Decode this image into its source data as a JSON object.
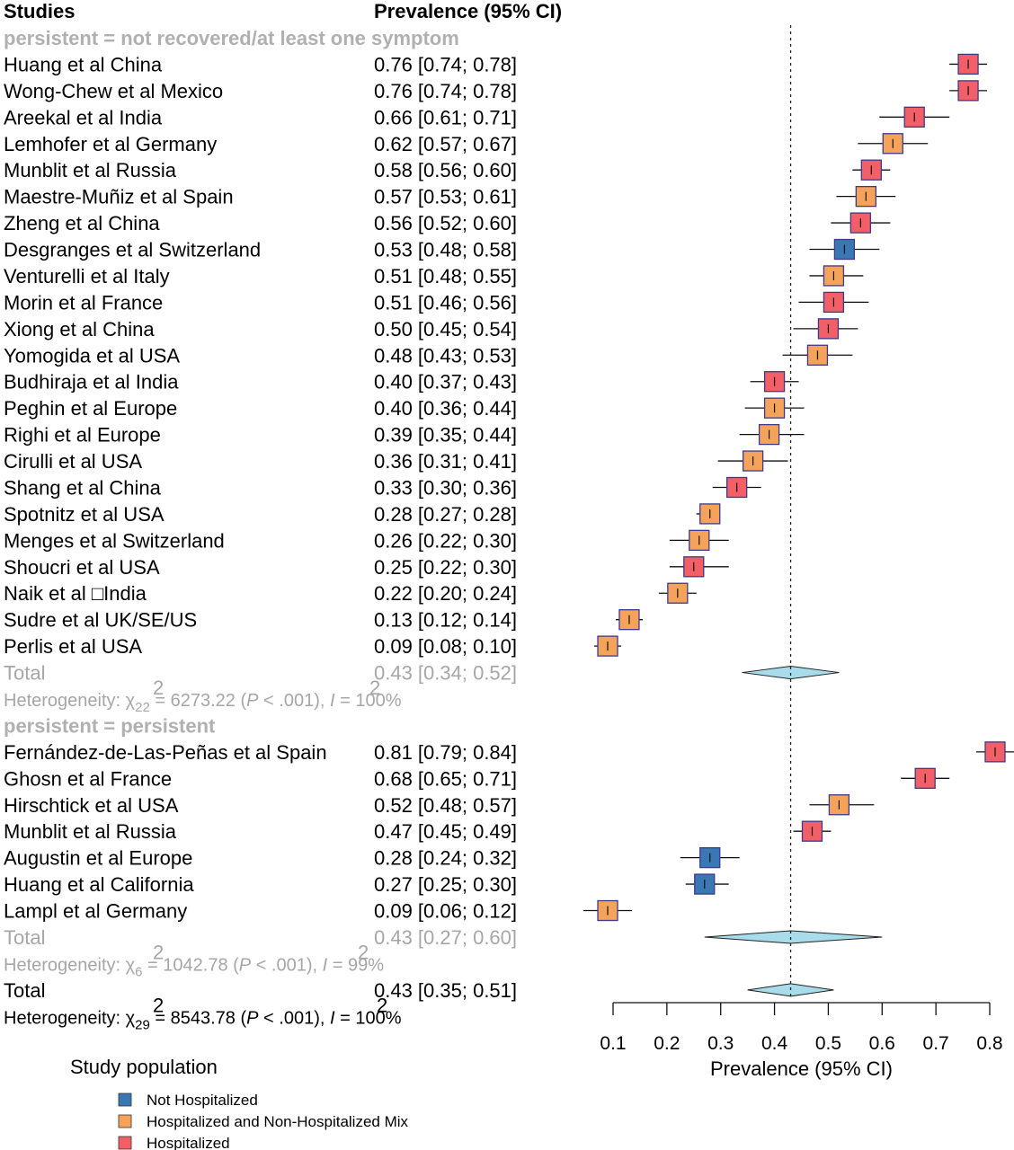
{
  "chart_data": {
    "type": "forest",
    "headers": {
      "studies": "Studies",
      "prevalence": "Prevalence (95% CI)"
    },
    "x_axis": {
      "label": "Prevalence (95% CI)",
      "range": [
        0.1,
        0.8
      ],
      "ticks": [
        "0.1",
        "0.2",
        "0.3",
        "0.4",
        "0.5",
        "0.6",
        "0.7",
        "0.8"
      ]
    },
    "reference_line": 0.43,
    "colors": {
      "Not Hospitalized": "#3a78b4",
      "Hospitalized and Non-Hospitalized Mix": "#f5a35a",
      "Hospitalized": "#f25f66",
      "box_border": "#3b3a8f",
      "diamond": "#a8dcea"
    },
    "groups": [
      {
        "title": "persistent = not recovered/at least one symptom",
        "studies": [
          {
            "name": "Huang et al China",
            "ci_text": "0.76 [0.74; 0.78]",
            "est": 0.76,
            "lo": 0.74,
            "hi": 0.78,
            "pop": "Hospitalized"
          },
          {
            "name": "Wong-Chew et al Mexico",
            "ci_text": "0.76 [0.74; 0.78]",
            "est": 0.76,
            "lo": 0.74,
            "hi": 0.78,
            "pop": "Hospitalized"
          },
          {
            "name": "Areekal et al India",
            "ci_text": "0.66 [0.61; 0.71]",
            "est": 0.66,
            "lo": 0.61,
            "hi": 0.71,
            "pop": "Hospitalized"
          },
          {
            "name": "Lemhofer et al Germany",
            "ci_text": "0.62 [0.57; 0.67]",
            "est": 0.62,
            "lo": 0.57,
            "hi": 0.67,
            "pop": "Hospitalized and Non-Hospitalized Mix"
          },
          {
            "name": "Munblit et al Russia",
            "ci_text": "0.58 [0.56; 0.60]",
            "est": 0.58,
            "lo": 0.56,
            "hi": 0.6,
            "pop": "Hospitalized"
          },
          {
            "name": "Maestre-Muñiz et al Spain",
            "ci_text": "0.57 [0.53; 0.61]",
            "est": 0.57,
            "lo": 0.53,
            "hi": 0.61,
            "pop": "Hospitalized and Non-Hospitalized Mix"
          },
          {
            "name": "Zheng et al China",
            "ci_text": "0.56 [0.52; 0.60]",
            "est": 0.56,
            "lo": 0.52,
            "hi": 0.6,
            "pop": "Hospitalized"
          },
          {
            "name": "Desgranges et al Switzerland",
            "ci_text": "0.53 [0.48; 0.58]",
            "est": 0.53,
            "lo": 0.48,
            "hi": 0.58,
            "pop": "Not Hospitalized"
          },
          {
            "name": "Venturelli et al Italy",
            "ci_text": "0.51 [0.48; 0.55]",
            "est": 0.51,
            "lo": 0.48,
            "hi": 0.55,
            "pop": "Hospitalized and Non-Hospitalized Mix"
          },
          {
            "name": "Morin et al France",
            "ci_text": "0.51 [0.46; 0.56]",
            "est": 0.51,
            "lo": 0.46,
            "hi": 0.56,
            "pop": "Hospitalized"
          },
          {
            "name": "Xiong et al China",
            "ci_text": "0.50 [0.45; 0.54]",
            "est": 0.5,
            "lo": 0.45,
            "hi": 0.54,
            "pop": "Hospitalized"
          },
          {
            "name": "Yomogida et al USA",
            "ci_text": "0.48 [0.43; 0.53]",
            "est": 0.48,
            "lo": 0.43,
            "hi": 0.53,
            "pop": "Hospitalized and Non-Hospitalized Mix"
          },
          {
            "name": "Budhiraja et al India",
            "ci_text": "0.40 [0.37; 0.43]",
            "est": 0.4,
            "lo": 0.37,
            "hi": 0.43,
            "pop": "Hospitalized"
          },
          {
            "name": "Peghin et al Europe",
            "ci_text": "0.40 [0.36; 0.44]",
            "est": 0.4,
            "lo": 0.36,
            "hi": 0.44,
            "pop": "Hospitalized and Non-Hospitalized Mix"
          },
          {
            "name": "Righi et al Europe",
            "ci_text": "0.39 [0.35; 0.44]",
            "est": 0.39,
            "lo": 0.35,
            "hi": 0.44,
            "pop": "Hospitalized and Non-Hospitalized Mix"
          },
          {
            "name": "Cirulli et al USA",
            "ci_text": "0.36 [0.31; 0.41]",
            "est": 0.36,
            "lo": 0.31,
            "hi": 0.41,
            "pop": "Hospitalized and Non-Hospitalized Mix"
          },
          {
            "name": "Shang et al China",
            "ci_text": "0.33 [0.30; 0.36]",
            "est": 0.33,
            "lo": 0.3,
            "hi": 0.36,
            "pop": "Hospitalized"
          },
          {
            "name": "Spotnitz et al USA",
            "ci_text": "0.28 [0.27; 0.28]",
            "est": 0.28,
            "lo": 0.27,
            "hi": 0.28,
            "pop": "Hospitalized and Non-Hospitalized Mix"
          },
          {
            "name": "Menges et al Switzerland",
            "ci_text": "0.26 [0.22; 0.30]",
            "est": 0.26,
            "lo": 0.22,
            "hi": 0.3,
            "pop": "Hospitalized and Non-Hospitalized Mix"
          },
          {
            "name": "Shoucri et al USA",
            "ci_text": "0.25 [0.22; 0.30]",
            "est": 0.25,
            "lo": 0.22,
            "hi": 0.3,
            "pop": "Hospitalized"
          },
          {
            "name": "Naik et al □India",
            "ci_text": "0.22 [0.20; 0.24]",
            "est": 0.22,
            "lo": 0.2,
            "hi": 0.24,
            "pop": "Hospitalized and Non-Hospitalized Mix"
          },
          {
            "name": "Sudre et al UK/SE/US",
            "ci_text": "0.13 [0.12; 0.14]",
            "est": 0.13,
            "lo": 0.12,
            "hi": 0.14,
            "pop": "Hospitalized and Non-Hospitalized Mix"
          },
          {
            "name": "Perlis et al USA",
            "ci_text": "0.09 [0.08; 0.10]",
            "est": 0.09,
            "lo": 0.08,
            "hi": 0.1,
            "pop": "Hospitalized and Non-Hospitalized Mix"
          }
        ],
        "total": {
          "name": "Total",
          "ci_text": "0.43 [0.34; 0.52]",
          "est": 0.43,
          "lo": 0.34,
          "hi": 0.52
        },
        "heterogeneity": {
          "prefix": "Heterogeneity: χ",
          "df": "22",
          "mid": " = 6273.22 (",
          "p": "P",
          "pval": " < .001), ",
          "i": "I",
          "i2": " = 100%"
        }
      },
      {
        "title": "persistent = persistent",
        "studies": [
          {
            "name": "Fernández-de-Las-Peñas et al Spain",
            "ci_text": "0.81 [0.79; 0.84]",
            "est": 0.81,
            "lo": 0.79,
            "hi": 0.84,
            "pop": "Hospitalized"
          },
          {
            "name": "Ghosn et al France",
            "ci_text": "0.68 [0.65; 0.71]",
            "est": 0.68,
            "lo": 0.65,
            "hi": 0.71,
            "pop": "Hospitalized"
          },
          {
            "name": "Hirschtick et al USA",
            "ci_text": "0.52 [0.48; 0.57]",
            "est": 0.52,
            "lo": 0.48,
            "hi": 0.57,
            "pop": "Hospitalized and Non-Hospitalized Mix"
          },
          {
            "name": "Munblit et al Russia",
            "ci_text": "0.47 [0.45; 0.49]",
            "est": 0.47,
            "lo": 0.45,
            "hi": 0.49,
            "pop": "Hospitalized"
          },
          {
            "name": "Augustin et al Europe",
            "ci_text": "0.28 [0.24; 0.32]",
            "est": 0.28,
            "lo": 0.24,
            "hi": 0.32,
            "pop": "Not Hospitalized"
          },
          {
            "name": "Huang et al California",
            "ci_text": "0.27 [0.25; 0.30]",
            "est": 0.27,
            "lo": 0.25,
            "hi": 0.3,
            "pop": "Not Hospitalized"
          },
          {
            "name": "Lampl et al Germany",
            "ci_text": "0.09 [0.06; 0.12]",
            "est": 0.09,
            "lo": 0.06,
            "hi": 0.12,
            "pop": "Hospitalized and Non-Hospitalized Mix"
          }
        ],
        "total": {
          "name": "Total",
          "ci_text": "0.43 [0.27; 0.60]",
          "est": 0.43,
          "lo": 0.27,
          "hi": 0.6
        },
        "heterogeneity": {
          "prefix": "Heterogeneity: χ",
          "df": "6",
          "mid": " = 1042.78 (",
          "p": "P",
          "pval": " < .001), ",
          "i": "I",
          "i2": " = 99%"
        }
      }
    ],
    "overall": {
      "name": "Total",
      "ci_text": "0.43 [0.35; 0.51]",
      "est": 0.43,
      "lo": 0.35,
      "hi": 0.51,
      "heterogeneity": {
        "prefix": "Heterogeneity: χ",
        "df": "29",
        "mid": " = 8543.78 (",
        "p": "P",
        "pval": " < .001), ",
        "i": "I",
        "i2": " = 100%"
      }
    },
    "legend": {
      "title": "Study population",
      "placement": "bottom-left",
      "items": [
        "Not Hospitalized",
        "Hospitalized and Non-Hospitalized Mix",
        "Hospitalized"
      ]
    }
  }
}
